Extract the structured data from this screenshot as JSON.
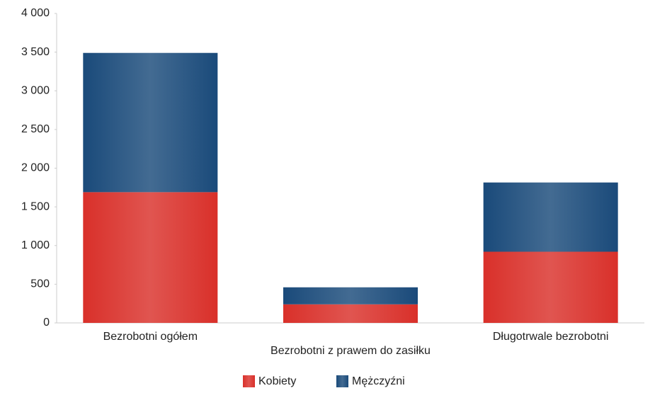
{
  "chart_data": {
    "type": "stacked_bar",
    "categories": [
      "Bezrobotni ogółem",
      "Bezrobotni z prawem do zasiłku",
      "Długotrwale bezrobotni"
    ],
    "series": [
      {
        "name": "Kobiety",
        "color": "#d9302a",
        "values": [
          1690,
          240,
          920
        ]
      },
      {
        "name": "Mężczyźni",
        "color": "#1a4a7a",
        "values": [
          1800,
          220,
          895
        ]
      }
    ],
    "ylim": [
      0,
      4000
    ],
    "yticks": [
      0,
      500,
      {
        "value": 1000,
        "label": "1 000"
      },
      {
        "value": 1500,
        "label": "1 500"
      },
      {
        "value": 2000,
        "label": "2 000"
      },
      {
        "value": 2500,
        "label": "2 500"
      },
      {
        "value": 3000,
        "label": "3 000"
      },
      {
        "value": 3500,
        "label": "3 500"
      },
      {
        "value": 4000,
        "label": "4 000"
      }
    ],
    "legend": "bottom"
  }
}
